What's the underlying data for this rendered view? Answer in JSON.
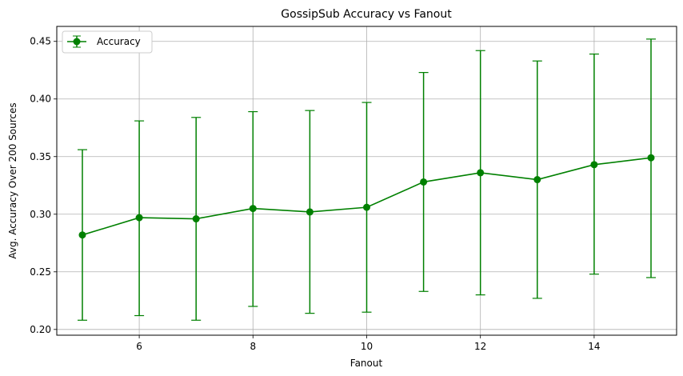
{
  "chart_data": {
    "type": "line",
    "title": "GossipSub Accuracy vs Fanout",
    "xlabel": "Fanout",
    "ylabel": "Avg. Accuracy Over 200 Sources",
    "xlim": [
      4.55,
      15.45
    ],
    "ylim": [
      0.195,
      0.463
    ],
    "xticks": [
      6,
      8,
      10,
      12,
      14
    ],
    "yticks": [
      0.2,
      0.25,
      0.3,
      0.35,
      0.4,
      0.45
    ],
    "ytick_labels": [
      "0.20",
      "0.25",
      "0.30",
      "0.35",
      "0.40",
      "0.45"
    ],
    "grid": true,
    "legend_position": "top-left",
    "series": [
      {
        "name": "Accuracy",
        "color": "#008000",
        "marker": "circle",
        "x": [
          5,
          6,
          7,
          8,
          9,
          10,
          11,
          12,
          13,
          14,
          15
        ],
        "y": [
          0.282,
          0.297,
          0.296,
          0.305,
          0.302,
          0.306,
          0.328,
          0.336,
          0.33,
          0.343,
          0.349
        ],
        "err_low": [
          0.208,
          0.212,
          0.208,
          0.22,
          0.214,
          0.215,
          0.233,
          0.23,
          0.227,
          0.248,
          0.245
        ],
        "err_high": [
          0.356,
          0.381,
          0.384,
          0.389,
          0.39,
          0.397,
          0.423,
          0.442,
          0.433,
          0.439,
          0.452
        ]
      }
    ]
  }
}
